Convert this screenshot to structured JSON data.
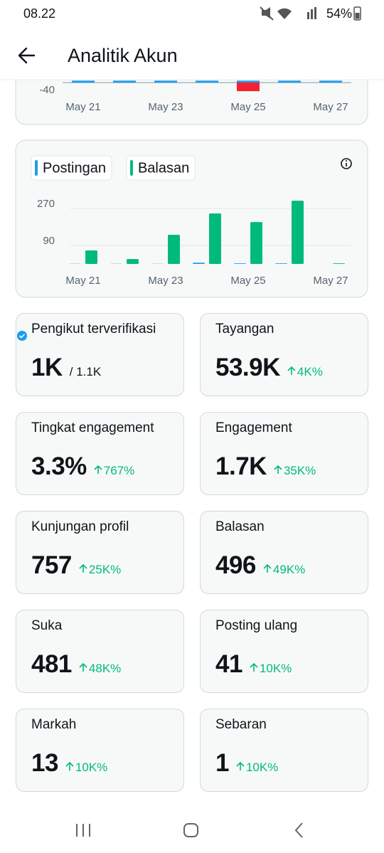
{
  "status_bar": {
    "time": "08.22",
    "battery": "54%"
  },
  "header": {
    "title": "Analitik Akun"
  },
  "chart_data": [
    {
      "type": "bar",
      "categories": [
        "May 21",
        null,
        "May 23",
        null,
        "May 25",
        null,
        "May 27"
      ],
      "series": [
        {
          "color": "#1d9bf0",
          "values": [
            10,
            10,
            10,
            10,
            10,
            10,
            10
          ]
        },
        {
          "color": "#f4212e",
          "values": [
            null,
            null,
            null,
            null,
            -44,
            null,
            null
          ]
        }
      ],
      "ylim": [
        -60,
        15
      ],
      "yticks": [
        -40
      ],
      "grid": false
    },
    {
      "type": "grouped-bar",
      "categories": [
        "May 21",
        null,
        "May 23",
        null,
        "May 25",
        null,
        "May 27"
      ],
      "series": [
        {
          "name": "Postingan",
          "color": "#1d9bf0",
          "values": [
            1,
            1,
            1,
            6,
            3,
            3,
            0
          ]
        },
        {
          "name": "Balasan",
          "color": "#00ba7c",
          "values": [
            66,
            24,
            142,
            246,
            204,
            308,
            3
          ]
        }
      ],
      "ylim": [
        0,
        350
      ],
      "yticks": [
        90,
        270
      ],
      "grid": true
    }
  ],
  "metrics": [
    {
      "label": "Pengikut terverifikasi",
      "value": "1K",
      "total": "/ 1.1K"
    },
    {
      "label": "Tayangan",
      "value": "53.9K",
      "change": "4K%"
    },
    {
      "label": "Tingkat engagement",
      "value": "3.3%",
      "change": "767%"
    },
    {
      "label": "Engagement",
      "value": "1.7K",
      "change": "35K%"
    },
    {
      "label": "Kunjungan profil",
      "value": "757",
      "change": "25K%"
    },
    {
      "label": "Balasan",
      "value": "496",
      "change": "49K%"
    },
    {
      "label": "Suka",
      "value": "481",
      "change": "48K%"
    },
    {
      "label": "Posting ulang",
      "value": "41",
      "change": "10K%"
    },
    {
      "label": "Markah",
      "value": "13",
      "change": "10K%"
    },
    {
      "label": "Sebaran",
      "value": "1",
      "change": "10K%"
    }
  ]
}
